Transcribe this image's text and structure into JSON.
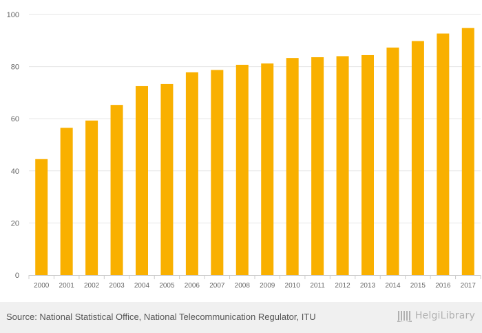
{
  "chart_data": {
    "type": "bar",
    "title": "",
    "xlabel": "",
    "ylabel": "",
    "categories": [
      "2000",
      "2001",
      "2002",
      "2003",
      "2004",
      "2005",
      "2006",
      "2007",
      "2008",
      "2009",
      "2010",
      "2011",
      "2012",
      "2013",
      "2014",
      "2015",
      "2016",
      "2017"
    ],
    "values": [
      44.5,
      56.5,
      59.3,
      65.3,
      72.5,
      73.3,
      77.8,
      78.7,
      80.7,
      81.2,
      83.3,
      83.6,
      84.0,
      84.4,
      87.3,
      89.8,
      92.7,
      94.8
    ],
    "ylim": [
      0,
      100
    ],
    "yticks": [
      "0",
      "20",
      "40",
      "60",
      "80",
      "100"
    ],
    "grid": true,
    "bar_color": "#f9b000"
  },
  "footer": {
    "source": "Source: National Statistical Office, National Telecommunication Regulator, ITU",
    "logo_text": "HelgiLibrary"
  }
}
